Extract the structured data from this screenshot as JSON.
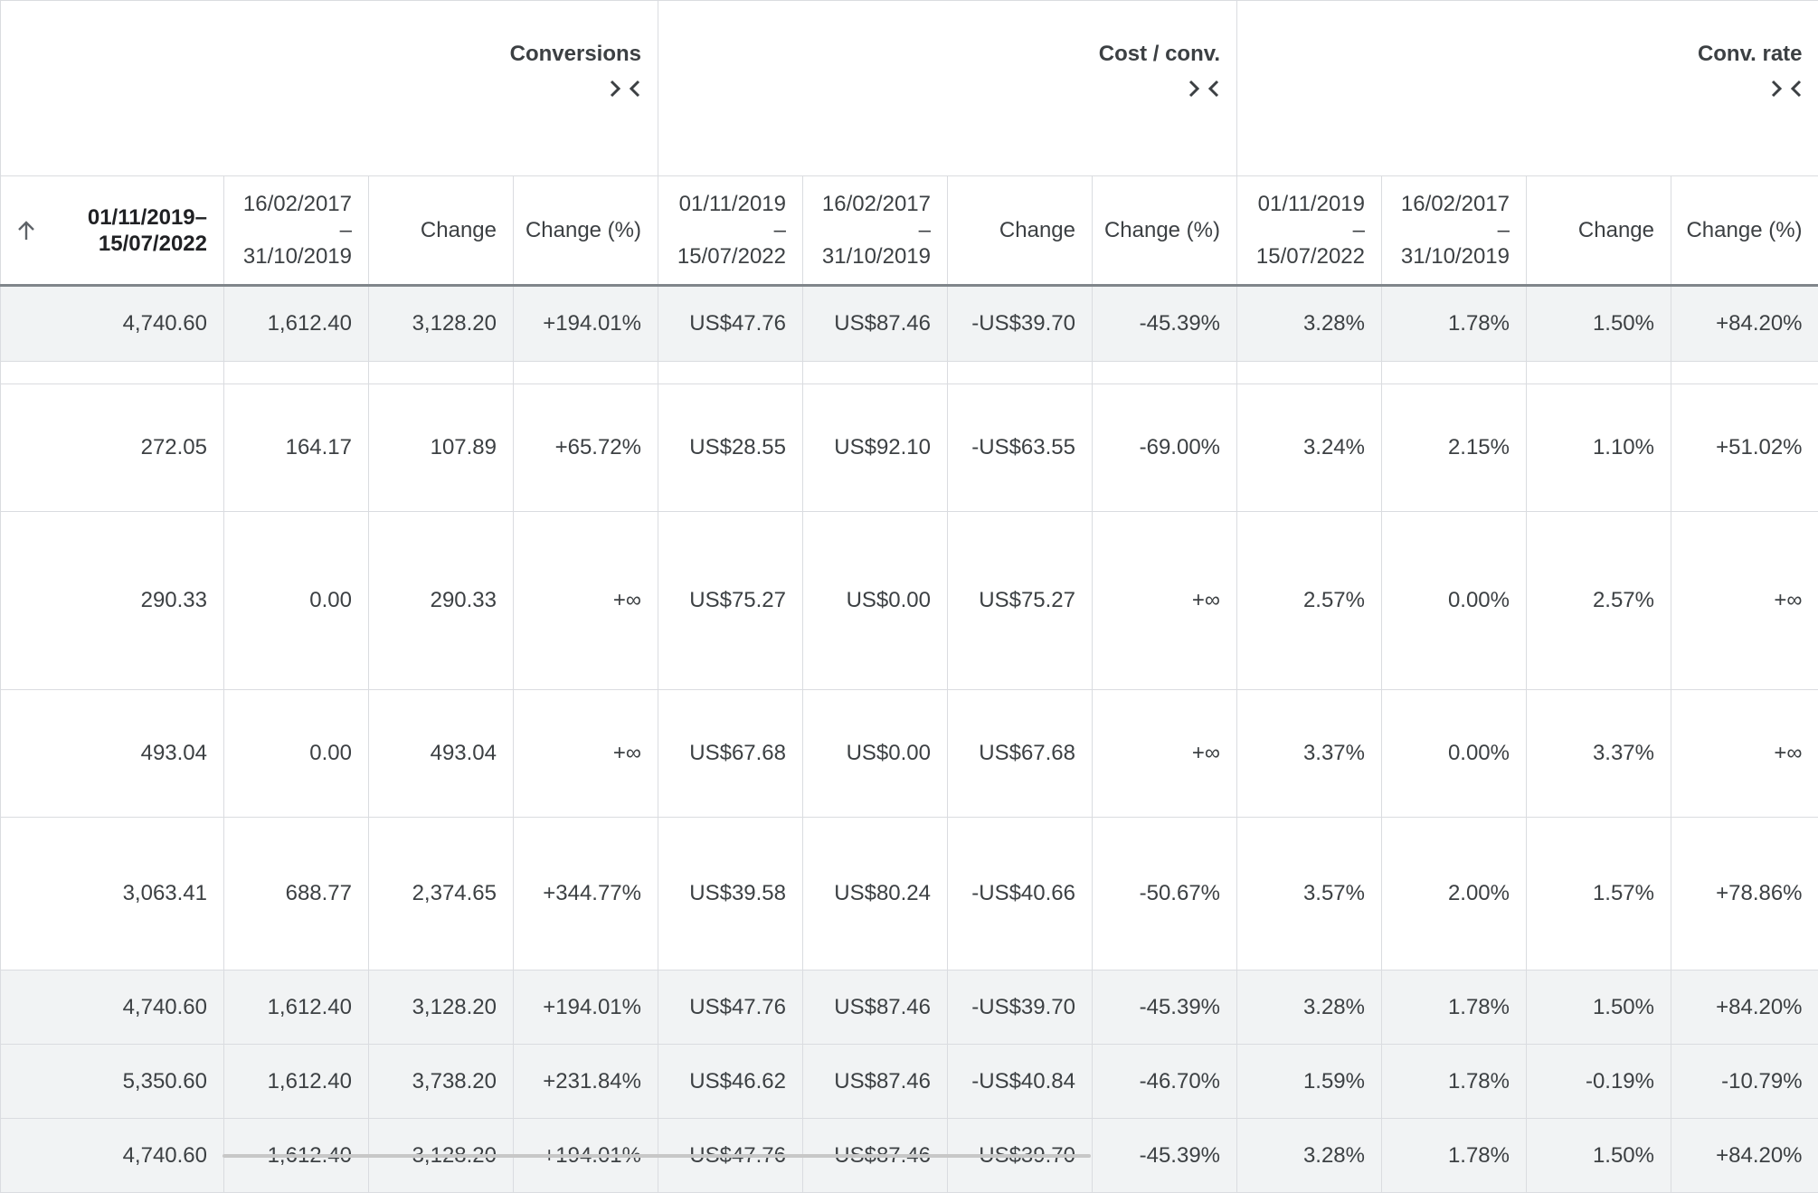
{
  "groups": [
    {
      "label": "Conversions",
      "icon": "collapse-arrows-icon"
    },
    {
      "label": "Cost / conv.",
      "icon": "collapse-arrows-icon"
    },
    {
      "label": "Conv. rate",
      "icon": "collapse-arrows-icon"
    }
  ],
  "columns": {
    "conv_current": "01/11/2019–\n15/07/2022",
    "current_a": "01/11/2019",
    "current_b": "15/07/2022",
    "previous_a": "16/02/2017",
    "previous_b": "31/10/2019",
    "dash": "–",
    "change": "Change",
    "change_pct": "Change (%)"
  },
  "conv_current_l1": "01/11/2019–",
  "conv_current_l2": "15/07/2022",
  "rows": [
    [
      "4,740.60",
      "1,612.40",
      "3,128.20",
      "+194.01%",
      "US$47.76",
      "US$87.46",
      "-US$39.70",
      "-45.39%",
      "3.28%",
      "1.78%",
      "1.50%",
      "+84.20%"
    ],
    [
      "272.05",
      "164.17",
      "107.89",
      "+65.72%",
      "US$28.55",
      "US$92.10",
      "-US$63.55",
      "-69.00%",
      "3.24%",
      "2.15%",
      "1.10%",
      "+51.02%"
    ],
    [
      "290.33",
      "0.00",
      "290.33",
      "+∞",
      "US$75.27",
      "US$0.00",
      "US$75.27",
      "+∞",
      "2.57%",
      "0.00%",
      "2.57%",
      "+∞"
    ],
    [
      "493.04",
      "0.00",
      "493.04",
      "+∞",
      "US$67.68",
      "US$0.00",
      "US$67.68",
      "+∞",
      "3.37%",
      "0.00%",
      "3.37%",
      "+∞"
    ],
    [
      "3,063.41",
      "688.77",
      "2,374.65",
      "+344.77%",
      "US$39.58",
      "US$80.24",
      "-US$40.66",
      "-50.67%",
      "3.57%",
      "2.00%",
      "1.57%",
      "+78.86%"
    ],
    [
      "4,740.60",
      "1,612.40",
      "3,128.20",
      "+194.01%",
      "US$47.76",
      "US$87.46",
      "-US$39.70",
      "-45.39%",
      "3.28%",
      "1.78%",
      "1.50%",
      "+84.20%"
    ],
    [
      "5,350.60",
      "1,612.40",
      "3,738.20",
      "+231.84%",
      "US$46.62",
      "US$87.46",
      "-US$40.84",
      "-46.70%",
      "1.59%",
      "1.78%",
      "-0.19%",
      "-10.79%"
    ],
    [
      "4,740.60",
      "1,612.40",
      "3,128.20",
      "+194.01%",
      "US$47.76",
      "US$87.46",
      "-US$39.70",
      "-45.39%",
      "3.28%",
      "1.78%",
      "1.50%",
      "+84.20%"
    ]
  ]
}
